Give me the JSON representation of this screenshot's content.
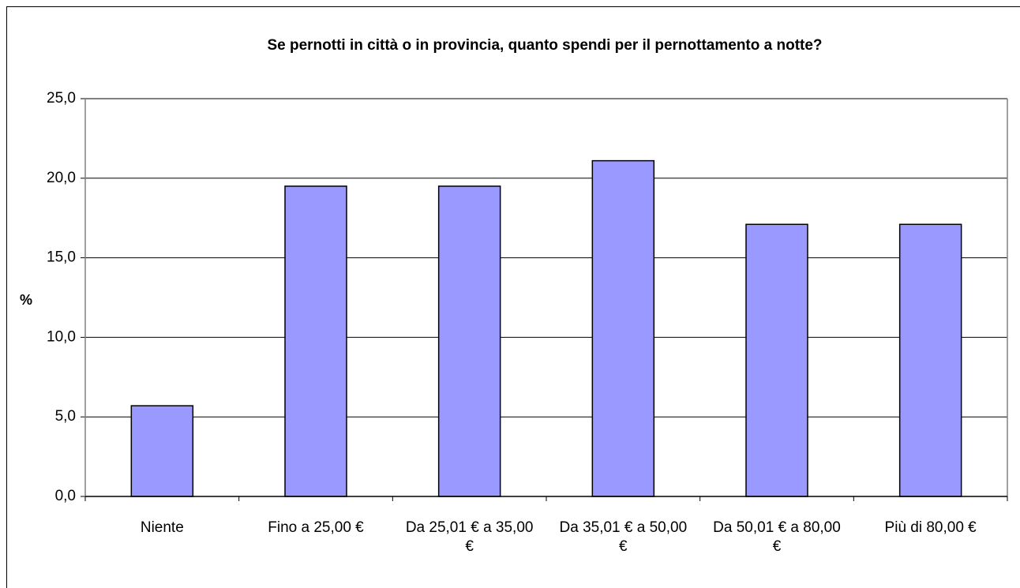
{
  "chart_data": {
    "type": "bar",
    "title": "Se pernotti in città o in provincia, quanto spendi per il pernottamento a notte?",
    "y_label": "%",
    "categories": [
      "Niente",
      "Fino a 25,00 €",
      "Da 25,01 € a 35,00 €",
      "Da 35,01 € a 50,00 €",
      "Da 50,01 € a 80,00 €",
      "Più di 80,00 €"
    ],
    "values": [
      5.7,
      19.5,
      19.5,
      21.1,
      17.1,
      17.1
    ],
    "color": "#9999ff",
    "ylim": [
      0,
      25
    ],
    "yticks": [
      {
        "value": 0,
        "label": "0,0"
      },
      {
        "value": 5,
        "label": "5,0"
      },
      {
        "value": 10,
        "label": "10,0"
      },
      {
        "value": 15,
        "label": "15,0"
      },
      {
        "value": 20,
        "label": "20,0"
      },
      {
        "value": 25,
        "label": "25,0"
      }
    ],
    "grid": true
  }
}
